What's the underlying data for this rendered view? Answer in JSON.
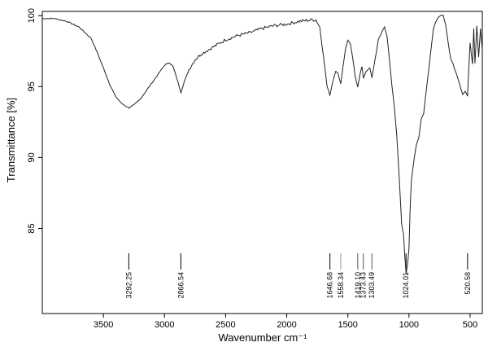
{
  "chart_data": {
    "type": "line",
    "title": "",
    "xlabel": "Wavenumber cm⁻¹",
    "ylabel": "Transmittance [%]",
    "xlim": [
      4000,
      400
    ],
    "ylim": [
      79,
      100.3
    ],
    "x_reversed": true,
    "grid": false,
    "x_ticks": [
      3500,
      3000,
      2500,
      2000,
      1500,
      1000,
      500
    ],
    "y_ticks": [
      85,
      90,
      95,
      100
    ],
    "series": [
      {
        "points": [
          [
            4000,
            99.8
          ],
          [
            3900,
            99.8
          ],
          [
            3800,
            99.6
          ],
          [
            3700,
            99.2
          ],
          [
            3600,
            98.4
          ],
          [
            3550,
            97.4
          ],
          [
            3500,
            96.3
          ],
          [
            3450,
            95.2
          ],
          [
            3400,
            94.3
          ],
          [
            3350,
            93.8
          ],
          [
            3292,
            93.5
          ],
          [
            3250,
            93.7
          ],
          [
            3200,
            94.1
          ],
          [
            3150,
            94.7
          ],
          [
            3100,
            95.3
          ],
          [
            3050,
            95.9
          ],
          [
            3000,
            96.5
          ],
          [
            2960,
            96.7
          ],
          [
            2930,
            96.4
          ],
          [
            2900,
            95.6
          ],
          [
            2866,
            94.6
          ],
          [
            2840,
            95.3
          ],
          [
            2800,
            96.2
          ],
          [
            2750,
            96.9
          ],
          [
            2700,
            97.3
          ],
          [
            2600,
            97.8
          ],
          [
            2500,
            98.3
          ],
          [
            2400,
            98.6
          ],
          [
            2300,
            98.8
          ],
          [
            2200,
            99.1
          ],
          [
            2100,
            99.3
          ],
          [
            2000,
            99.4
          ],
          [
            1900,
            99.6
          ],
          [
            1800,
            99.7
          ],
          [
            1760,
            99.7
          ],
          [
            1730,
            99.2
          ],
          [
            1700,
            97.2
          ],
          [
            1670,
            95.0
          ],
          [
            1647,
            94.4
          ],
          [
            1625,
            95.3
          ],
          [
            1600,
            96.1
          ],
          [
            1580,
            95.9
          ],
          [
            1558,
            95.2
          ],
          [
            1540,
            96.4
          ],
          [
            1520,
            97.6
          ],
          [
            1500,
            98.3
          ],
          [
            1480,
            98.0
          ],
          [
            1460,
            97.0
          ],
          [
            1440,
            95.7
          ],
          [
            1419,
            95.0
          ],
          [
            1400,
            95.9
          ],
          [
            1385,
            96.4
          ],
          [
            1373,
            95.6
          ],
          [
            1350,
            96.1
          ],
          [
            1320,
            96.3
          ],
          [
            1303,
            95.6
          ],
          [
            1280,
            96.8
          ],
          [
            1250,
            98.3
          ],
          [
            1220,
            98.9
          ],
          [
            1200,
            99.2
          ],
          [
            1180,
            98.6
          ],
          [
            1160,
            96.9
          ],
          [
            1140,
            95.1
          ],
          [
            1120,
            93.6
          ],
          [
            1100,
            91.6
          ],
          [
            1080,
            88.6
          ],
          [
            1060,
            85.3
          ],
          [
            1045,
            84.6
          ],
          [
            1035,
            83.2
          ],
          [
            1024,
            81.8
          ],
          [
            1010,
            82.6
          ],
          [
            1000,
            83.6
          ],
          [
            990,
            86.5
          ],
          [
            980,
            88.4
          ],
          [
            960,
            89.8
          ],
          [
            940,
            90.9
          ],
          [
            920,
            91.4
          ],
          [
            900,
            92.7
          ],
          [
            880,
            93.1
          ],
          [
            860,
            94.6
          ],
          [
            840,
            96.1
          ],
          [
            820,
            97.6
          ],
          [
            800,
            99.1
          ],
          [
            780,
            99.6
          ],
          [
            760,
            99.9
          ],
          [
            740,
            100.0
          ],
          [
            720,
            100.0
          ],
          [
            700,
            99.4
          ],
          [
            680,
            98.1
          ],
          [
            660,
            97.0
          ],
          [
            640,
            96.6
          ],
          [
            620,
            96.1
          ],
          [
            600,
            95.6
          ],
          [
            580,
            95.0
          ],
          [
            560,
            94.4
          ],
          [
            540,
            94.7
          ],
          [
            521,
            94.3
          ],
          [
            510,
            96.4
          ],
          [
            500,
            98.1
          ],
          [
            480,
            96.6
          ],
          [
            470,
            99.1
          ],
          [
            460,
            96.6
          ],
          [
            445,
            99.3
          ],
          [
            430,
            97.1
          ],
          [
            415,
            99.1
          ],
          [
            400,
            97.6
          ]
        ]
      }
    ],
    "annotations": [
      {
        "x": 3292.25,
        "label": "3292.25",
        "emphasis": "strong"
      },
      {
        "x": 2866.54,
        "label": "2866.54",
        "emphasis": "strong"
      },
      {
        "x": 1646.68,
        "label": "1646.68",
        "emphasis": "strong"
      },
      {
        "x": 1558.34,
        "label": "1558.34",
        "emphasis": "weak"
      },
      {
        "x": 1419.1,
        "label": "1419.10",
        "emphasis": "medium"
      },
      {
        "x": 1373.43,
        "label": "1373.43",
        "emphasis": "medium"
      },
      {
        "x": 1303.49,
        "label": "1303.49",
        "emphasis": "medium"
      },
      {
        "x": 1024.01,
        "label": "1024.01",
        "emphasis": "strong"
      },
      {
        "x": 520.58,
        "label": "520.58",
        "emphasis": "strong"
      }
    ],
    "colors": {
      "line": "#222222",
      "strong": "#000000",
      "medium": "#555555",
      "weak": "#999999"
    }
  }
}
